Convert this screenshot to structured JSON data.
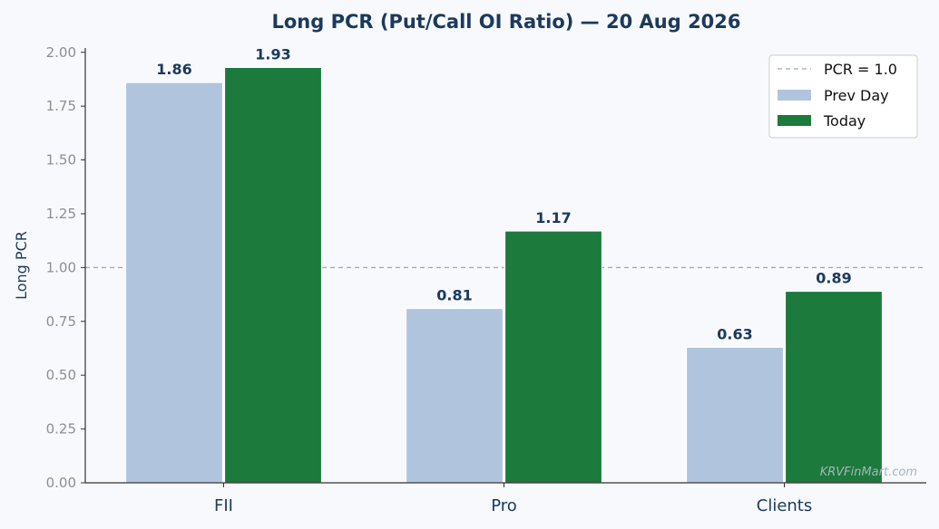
{
  "chart_data": {
    "type": "bar",
    "title": "Long PCR (Put/Call OI Ratio) — 20 Aug 2026",
    "xlabel": "",
    "ylabel": "Long PCR",
    "categories": [
      "FII",
      "Pro",
      "Clients"
    ],
    "series": [
      {
        "name": "Prev Day",
        "values": [
          1.86,
          0.81,
          0.63
        ],
        "color": "#b0c4de"
      },
      {
        "name": "Today",
        "values": [
          1.93,
          1.17,
          0.89
        ],
        "color": "#1b7a3c"
      }
    ],
    "data_labels": [
      [
        "1.86",
        "0.81",
        "0.63"
      ],
      [
        "1.93",
        "1.17",
        "0.89"
      ]
    ],
    "ylim": [
      0,
      2.02
    ],
    "yticks": [
      "0.00",
      "0.25",
      "0.50",
      "0.75",
      "1.00",
      "1.25",
      "1.50",
      "1.75",
      "2.00"
    ],
    "reference_line": {
      "label": "PCR = 1.0",
      "value": 1.0,
      "color": "#9aa7bb"
    },
    "legend_position": "top-right",
    "grid": false,
    "watermark": "KRVFinMart.com"
  }
}
